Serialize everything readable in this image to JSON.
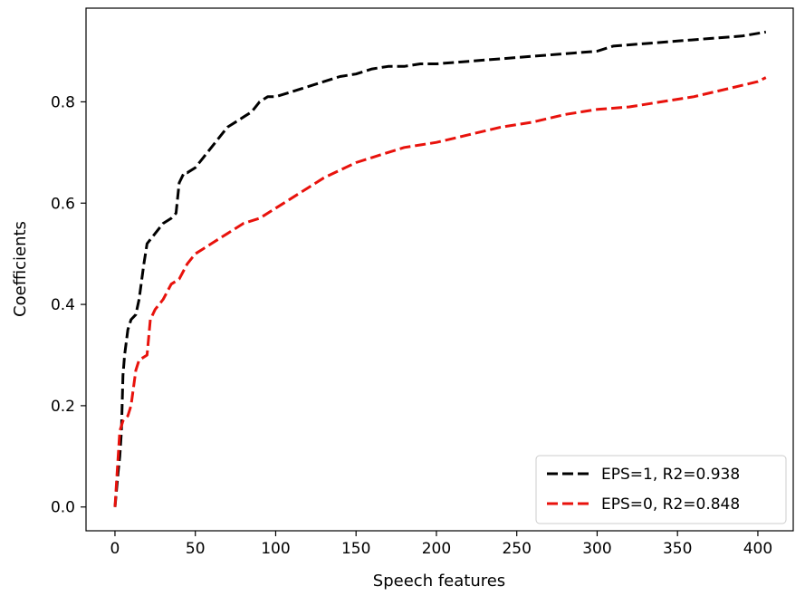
{
  "chart_data": {
    "type": "line",
    "title": "",
    "xlabel": "Speech features",
    "ylabel": "Coefficients",
    "xlim": [
      -18,
      422
    ],
    "ylim": [
      -0.047,
      0.985
    ],
    "xticks": [
      0,
      50,
      100,
      150,
      200,
      250,
      300,
      350,
      400
    ],
    "yticks": [
      0.0,
      0.2,
      0.4,
      0.6,
      0.8
    ],
    "ytick_labels": [
      "0.0",
      "0.2",
      "0.4",
      "0.6",
      "0.8"
    ],
    "grid": false,
    "legend_position": "bottom-right",
    "series": [
      {
        "name": "EPS=1, R2=0.938",
        "color": "#000000",
        "linestyle": "dashed",
        "x": [
          0,
          2,
          3,
          4,
          5,
          6,
          8,
          10,
          13,
          15,
          18,
          20,
          25,
          30,
          35,
          38,
          40,
          43,
          45,
          50,
          55,
          60,
          65,
          70,
          75,
          80,
          85,
          90,
          95,
          100,
          110,
          120,
          130,
          140,
          150,
          160,
          170,
          180,
          190,
          200,
          220,
          240,
          260,
          280,
          300,
          310,
          330,
          350,
          370,
          390,
          405
        ],
        "y": [
          0.0,
          0.07,
          0.1,
          0.15,
          0.26,
          0.3,
          0.35,
          0.37,
          0.38,
          0.41,
          0.48,
          0.52,
          0.54,
          0.56,
          0.57,
          0.58,
          0.64,
          0.66,
          0.66,
          0.67,
          0.69,
          0.71,
          0.73,
          0.75,
          0.76,
          0.77,
          0.78,
          0.8,
          0.81,
          0.81,
          0.82,
          0.83,
          0.84,
          0.85,
          0.855,
          0.865,
          0.87,
          0.87,
          0.875,
          0.875,
          0.88,
          0.885,
          0.89,
          0.895,
          0.9,
          0.91,
          0.915,
          0.92,
          0.925,
          0.93,
          0.938
        ]
      },
      {
        "name": "EPS=0, R2=0.848",
        "color": "#e8120c",
        "linestyle": "dashed",
        "x": [
          0,
          1,
          2,
          3,
          5,
          8,
          10,
          13,
          15,
          20,
          22,
          25,
          30,
          35,
          40,
          45,
          50,
          55,
          60,
          70,
          80,
          90,
          100,
          105,
          110,
          120,
          130,
          140,
          150,
          160,
          170,
          180,
          190,
          200,
          220,
          240,
          260,
          280,
          300,
          320,
          340,
          360,
          380,
          400,
          405
        ],
        "y": [
          0.0,
          0.05,
          0.1,
          0.15,
          0.17,
          0.18,
          0.2,
          0.27,
          0.29,
          0.3,
          0.37,
          0.39,
          0.41,
          0.44,
          0.45,
          0.48,
          0.5,
          0.51,
          0.52,
          0.54,
          0.56,
          0.57,
          0.59,
          0.6,
          0.61,
          0.63,
          0.65,
          0.665,
          0.68,
          0.69,
          0.7,
          0.71,
          0.715,
          0.72,
          0.735,
          0.75,
          0.76,
          0.775,
          0.785,
          0.79,
          0.8,
          0.81,
          0.825,
          0.84,
          0.848
        ]
      }
    ]
  }
}
